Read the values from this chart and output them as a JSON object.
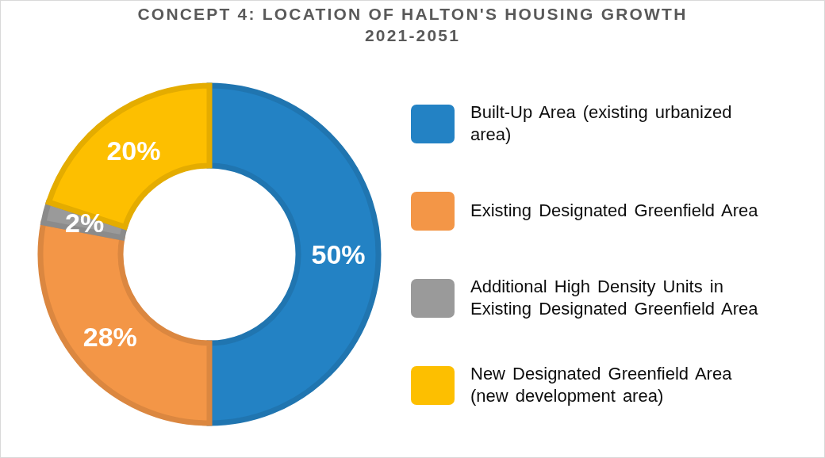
{
  "chart_data": {
    "type": "donut",
    "title": "CONCEPT 4: LOCATION OF HALTON'S HOUSING GROWTH\n2021-2051",
    "categories": [
      "Built-Up Area (existing urbanized area)",
      "Existing Designated Greenfield Area",
      "Additional High Density Units in Existing Designated Greenfield Area",
      "New Designated Greenfield Area (new development area)"
    ],
    "values": [
      50,
      28,
      2,
      20
    ],
    "colors": [
      "#2382c4",
      "#f39647",
      "#9a9a9a",
      "#fdbf00"
    ],
    "value_labels": [
      "50%",
      "28%",
      "2%",
      "20%"
    ],
    "legend": "right"
  }
}
